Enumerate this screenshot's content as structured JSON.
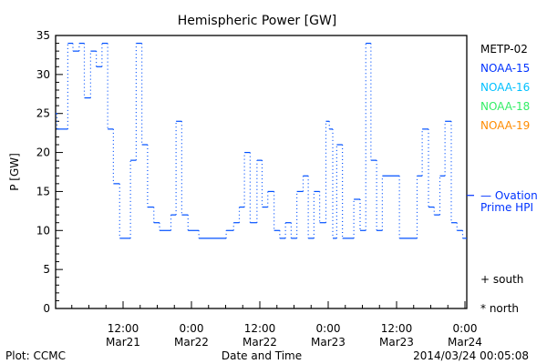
{
  "chart_data": {
    "type": "line",
    "title": "Hemispheric Power [GW]",
    "xlabel": "Date and Time",
    "ylabel": "P [GW]",
    "x_units": "hours since 2014-03-21 00:00",
    "xlim": [
      0.16,
      72.32
    ],
    "ylim": [
      0,
      35
    ],
    "yticks": [
      0,
      5,
      10,
      15,
      20,
      25,
      30,
      35
    ],
    "xticks": [
      {
        "x": 12,
        "line1": "12:00",
        "line2": "Mar21"
      },
      {
        "x": 24,
        "line1": "0:00",
        "line2": "Mar22"
      },
      {
        "x": 36,
        "line1": "12:00",
        "line2": "Mar22"
      },
      {
        "x": 48,
        "line1": "0:00",
        "line2": "Mar23"
      },
      {
        "x": 60,
        "line1": "12:00",
        "line2": "Mar23"
      },
      {
        "x": 72,
        "line1": "0:00",
        "line2": "Mar24"
      }
    ],
    "legend": [
      {
        "name": "METP-02",
        "color": "#000000"
      },
      {
        "name": "NOAA-15",
        "color": "#0033ff"
      },
      {
        "name": "NOAA-16",
        "color": "#00c0ff"
      },
      {
        "name": "NOAA-18",
        "color": "#33ee66"
      },
      {
        "name": "NOAA-19",
        "color": "#ff8c00"
      }
    ],
    "legend_placement": "right",
    "reference": {
      "line1": "— Ovation",
      "line2": "Prime HPI",
      "value": 14.5,
      "color": "#0033ff"
    },
    "markers": {
      "south": "+ south",
      "north": "* north"
    },
    "series": [
      {
        "name": "NOAA-15",
        "color": "#0050ff",
        "step_x": [
          0.16,
          0.4,
          2.3,
          3.2,
          4.3,
          5.2,
          6.3,
          7.3,
          8.3,
          9.3,
          10.3,
          11.4,
          13.3,
          14.3,
          15.3,
          16.3,
          17.4,
          18.4,
          20.4,
          21.3,
          22.3,
          23.4,
          25.3,
          30.1,
          31.4,
          32.4,
          33.3,
          34.3,
          35.5,
          36.4,
          37.4,
          38.5,
          39.5,
          40.5,
          41.5,
          42.5,
          43.6,
          44.5,
          45.5,
          46.5,
          47.6,
          48.2,
          48.8,
          49.5,
          50.5,
          52.5,
          53.6,
          54.6,
          55.5,
          56.5,
          57.5,
          60.5,
          63.6,
          64.5,
          65.6,
          66.6,
          67.6,
          68.5,
          69.6,
          70.6,
          71.6
        ],
        "values": [
          25,
          23,
          34,
          33,
          34,
          27,
          33,
          31,
          34,
          23,
          16,
          9,
          19,
          34,
          21,
          13,
          11,
          10,
          12,
          24,
          12,
          10,
          9,
          10,
          11,
          13,
          20,
          11,
          19,
          13,
          15,
          10,
          9,
          11,
          9,
          15,
          17,
          9,
          15,
          11,
          24,
          23,
          9,
          21,
          9,
          14,
          10,
          34,
          19,
          10,
          17,
          9,
          17,
          23,
          13,
          12,
          17,
          24,
          11,
          10,
          9
        ]
      }
    ]
  },
  "footer": {
    "left": "Plot: CCMC",
    "right": "2014/03/24 00:05:08"
  }
}
